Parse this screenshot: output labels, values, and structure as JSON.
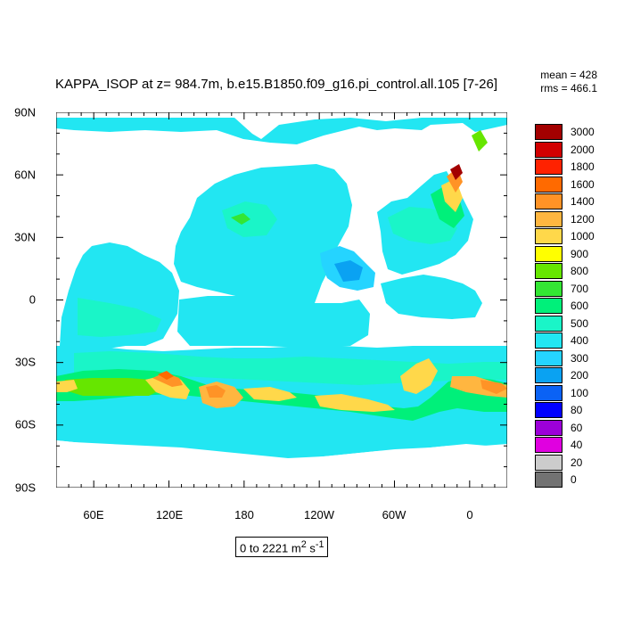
{
  "title": "KAPPA_ISOP at z= 984.7m, b.e15.B1850.f09_g16.pi_control.all.105 [7-26]",
  "stats": {
    "mean": "mean = 428",
    "rms": "rms = 466.1"
  },
  "range_label": "0 to 2221",
  "range_units_base": "m",
  "range_units_sup1": "2",
  "range_units_s": "s",
  "range_units_sup2": "-1",
  "lat_labels": [
    "90N",
    "60N",
    "30N",
    "0",
    "30S",
    "60S",
    "90S"
  ],
  "lon_labels": [
    "60E",
    "120E",
    "180",
    "120W",
    "60W",
    "0"
  ],
  "legend": {
    "labels": [
      "3000",
      "2000",
      "1800",
      "1600",
      "1400",
      "1200",
      "1000",
      "900",
      "800",
      "700",
      "600",
      "500",
      "400",
      "300",
      "200",
      "100",
      "80",
      "60",
      "40",
      "20",
      "0"
    ],
    "colors": [
      "#a30000",
      "#d10000",
      "#ff2200",
      "#ff6a00",
      "#ff9326",
      "#ffb640",
      "#ffd84a",
      "#ffff00",
      "#66e600",
      "#33e633",
      "#00f07a",
      "#1af5c8",
      "#22e6f2",
      "#25d4ff",
      "#0aa2f2",
      "#0a62f5",
      "#0000ff",
      "#9c00d8",
      "#e000e0",
      "#cccccc",
      "#727272"
    ]
  },
  "chart_data": {
    "type": "contour-map",
    "variable": "KAPPA_ISOP",
    "depth": "984.7m",
    "experiment": "b.e15.B1850.f09_g16.pi_control.all.105",
    "mean": 428,
    "rms": 466.1,
    "data_range": [
      0,
      2221
    ],
    "contour_levels": [
      0,
      20,
      40,
      60,
      80,
      100,
      200,
      300,
      400,
      500,
      600,
      700,
      800,
      900,
      1000,
      1200,
      1400,
      1600,
      1800,
      2000,
      3000
    ],
    "lat_range": [
      -90,
      90
    ],
    "lon_range": [
      30,
      390
    ],
    "lat_ticks": [
      90,
      60,
      30,
      0,
      -30,
      -60,
      -90
    ],
    "lon_ticks": [
      60,
      120,
      180,
      240,
      300,
      360
    ]
  }
}
